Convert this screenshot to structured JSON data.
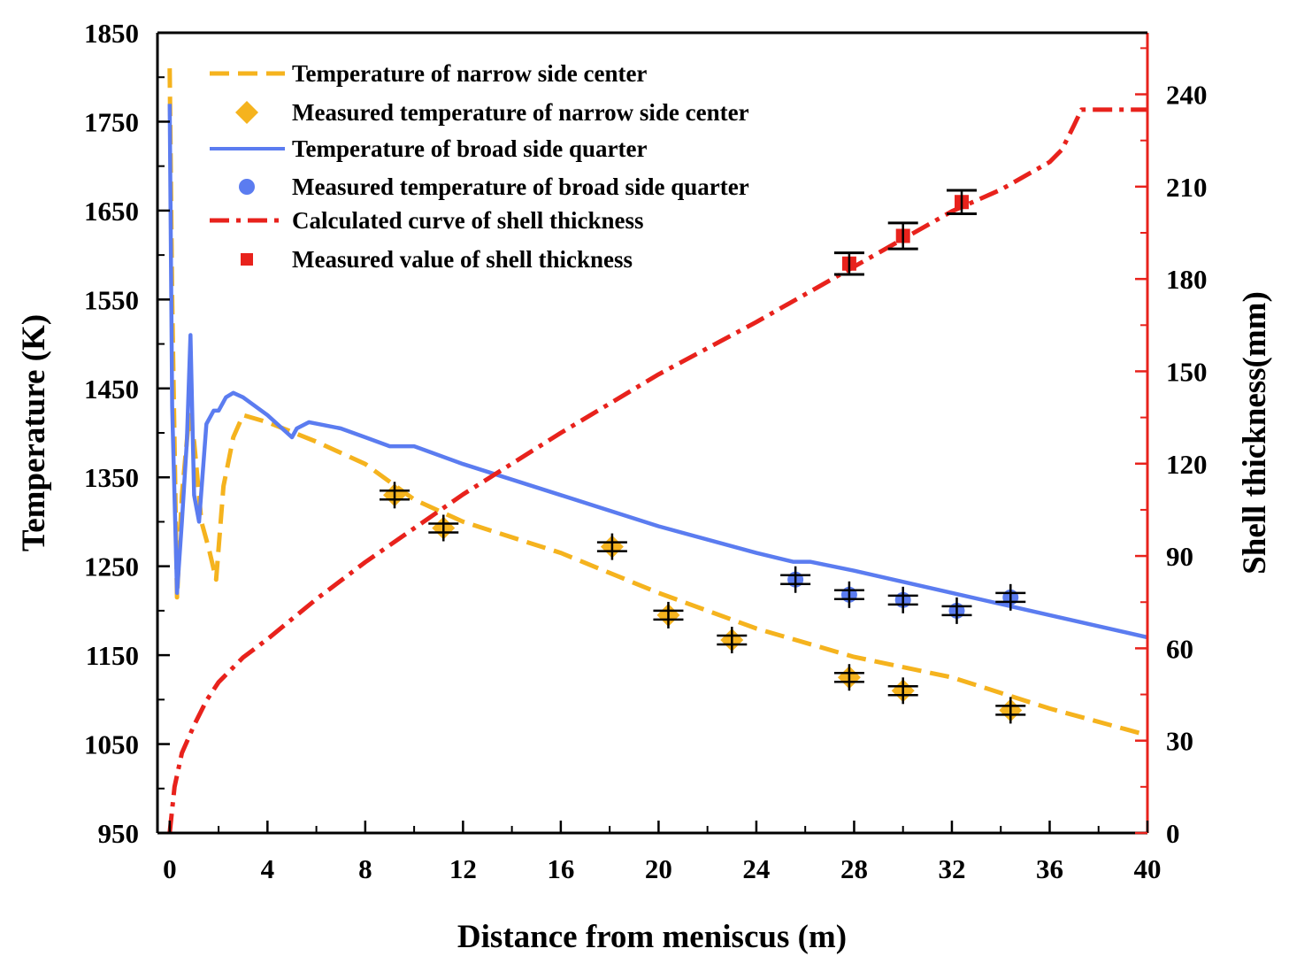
{
  "chart_data": {
    "type": "line",
    "xlabel": "Distance from meniscus (m)",
    "ylabel_left": "Temperature (K)",
    "ylabel_right": "Shell thickness(mm)",
    "xlim": [
      -0.5,
      40
    ],
    "ylim_left": [
      950,
      1850
    ],
    "ylim_right": [
      0,
      260
    ],
    "x_ticks": [
      0,
      4,
      8,
      12,
      16,
      20,
      24,
      28,
      32,
      36,
      40
    ],
    "y_left_ticks": [
      950,
      1050,
      1150,
      1250,
      1350,
      1450,
      1550,
      1650,
      1750,
      1850
    ],
    "y_right_ticks": [
      0,
      30,
      60,
      90,
      120,
      150,
      180,
      210,
      240
    ],
    "colors": {
      "narrow": "#f5b31e",
      "broad": "#5b7cf0",
      "shell": "#e8221c",
      "error": "#000000"
    },
    "legend": [
      "Temperature of narrow side center",
      "Measured temperature of narrow side center",
      "Temperature of broad side quarter",
      "Measured temperature of broad side quarter",
      "Calculated curve of shell thickness",
      "Measured value of shell thickness"
    ],
    "series": [
      {
        "name": "Temperature of narrow side center",
        "axis": "left",
        "style": "dashed",
        "x": [
          0,
          0.1,
          0.3,
          0.5,
          0.8,
          1.0,
          1.3,
          1.6,
          1.9,
          2.2,
          2.6,
          3.0,
          4.0,
          6.0,
          8.0,
          10.0,
          12.0,
          16.0,
          20.0,
          24.0,
          28.0,
          32.0,
          36.0,
          40.0
        ],
        "y": [
          1810,
          1550,
          1215,
          1330,
          1420,
          1390,
          1300,
          1270,
          1235,
          1340,
          1395,
          1420,
          1412,
          1390,
          1365,
          1325,
          1300,
          1265,
          1220,
          1180,
          1148,
          1125,
          1090,
          1060
        ]
      },
      {
        "name": "Temperature of broad side quarter",
        "axis": "left",
        "style": "solid",
        "x": [
          0,
          0.1,
          0.3,
          0.5,
          0.7,
          0.85,
          1.0,
          1.2,
          1.5,
          1.8,
          2.0,
          2.3,
          2.6,
          3.0,
          4.0,
          5.0,
          5.2,
          5.7,
          7.0,
          8.0,
          9.0,
          10.0,
          12.0,
          16.0,
          20.0,
          24.0,
          25.5,
          26.2,
          28.0,
          32.0,
          36.0,
          40.0
        ],
        "y": [
          1770,
          1430,
          1220,
          1300,
          1390,
          1510,
          1330,
          1300,
          1410,
          1425,
          1425,
          1440,
          1445,
          1440,
          1420,
          1395,
          1405,
          1412,
          1405,
          1395,
          1385,
          1385,
          1365,
          1330,
          1295,
          1265,
          1255,
          1255,
          1245,
          1220,
          1195,
          1170
        ]
      },
      {
        "name": "Calculated curve of shell thickness",
        "axis": "right",
        "style": "dashdot",
        "x": [
          0,
          0.2,
          0.5,
          1.0,
          1.5,
          2.0,
          3.0,
          4.0,
          6.0,
          8.0,
          10.0,
          12.0,
          16.0,
          20.0,
          24.0,
          28.0,
          32.0,
          34.0,
          36.0,
          36.5,
          37.0,
          37.3,
          38.0,
          40.0
        ],
        "y": [
          0,
          15,
          26,
          35,
          43,
          49,
          57,
          63,
          76,
          88,
          99,
          110,
          130,
          149,
          166,
          184,
          202,
          209,
          218,
          222,
          230,
          235,
          235,
          235
        ]
      }
    ],
    "measured": [
      {
        "name": "Measured temperature of narrow side center",
        "axis": "left",
        "marker": "diamond",
        "x": [
          9.2,
          11.2,
          18.1,
          20.4,
          23.0,
          27.8,
          30.0,
          34.4
        ],
        "y": [
          1330,
          1293,
          1272,
          1195,
          1167,
          1125,
          1110,
          1088
        ]
      },
      {
        "name": "Measured temperature of broad side quarter",
        "axis": "left",
        "marker": "circle",
        "x": [
          25.6,
          27.8,
          30.0,
          32.2,
          34.4
        ],
        "y": [
          1235,
          1218,
          1212,
          1200,
          1215
        ]
      },
      {
        "name": "Measured value of shell thickness",
        "axis": "right",
        "marker": "square",
        "x": [
          27.8,
          30.0,
          32.4
        ],
        "y": [
          185,
          194,
          205
        ],
        "err": [
          3.5,
          4.2,
          3.8
        ]
      }
    ]
  }
}
